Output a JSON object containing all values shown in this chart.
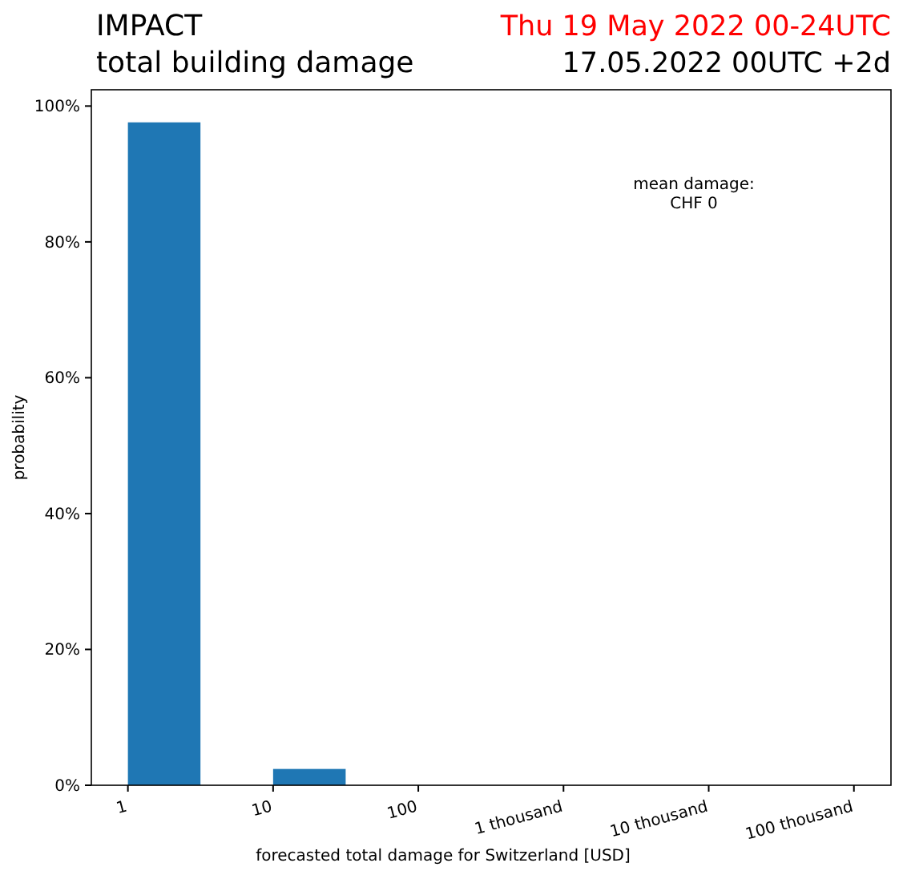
{
  "chart_data": {
    "type": "histogram",
    "title": "IMPACT",
    "subtitle": "total building damage",
    "annotations": [
      "Thu 19 May 2022 00-24UTC",
      "17.05.2022 00UTC +2d",
      "mean damage:\nCHF 0"
    ],
    "xlabel": "forecasted total damage for Switzerland [USD]",
    "ylabel": "probability",
    "bins": [
      1,
      3.16,
      10,
      31.6,
      100,
      316,
      1000,
      3160,
      10000,
      31600,
      100000
    ],
    "values": [
      97.6,
      0,
      2.4,
      0,
      0,
      0,
      0,
      0,
      0,
      0
    ],
    "color": "#1f77b4",
    "log": "x",
    "xlim": [
      0.56,
      180000
    ],
    "xticks": [
      {
        "value": 1,
        "label": "1"
      },
      {
        "value": 10,
        "label": "10"
      },
      {
        "value": 100,
        "label": "100"
      },
      {
        "value": 1000,
        "label": "1 thousand"
      },
      {
        "value": 10000,
        "label": "10 thousand"
      },
      {
        "value": 100000,
        "label": "100 thousand"
      }
    ],
    "ylim": [
      0,
      102.4
    ],
    "yticks": [
      {
        "value": 0,
        "label": "0%"
      },
      {
        "value": 20,
        "label": "20%"
      },
      {
        "value": 40,
        "label": "40%"
      },
      {
        "value": 60,
        "label": "60%"
      },
      {
        "value": 80,
        "label": "80%"
      },
      {
        "value": 100,
        "label": "100%"
      }
    ],
    "grid": false
  }
}
